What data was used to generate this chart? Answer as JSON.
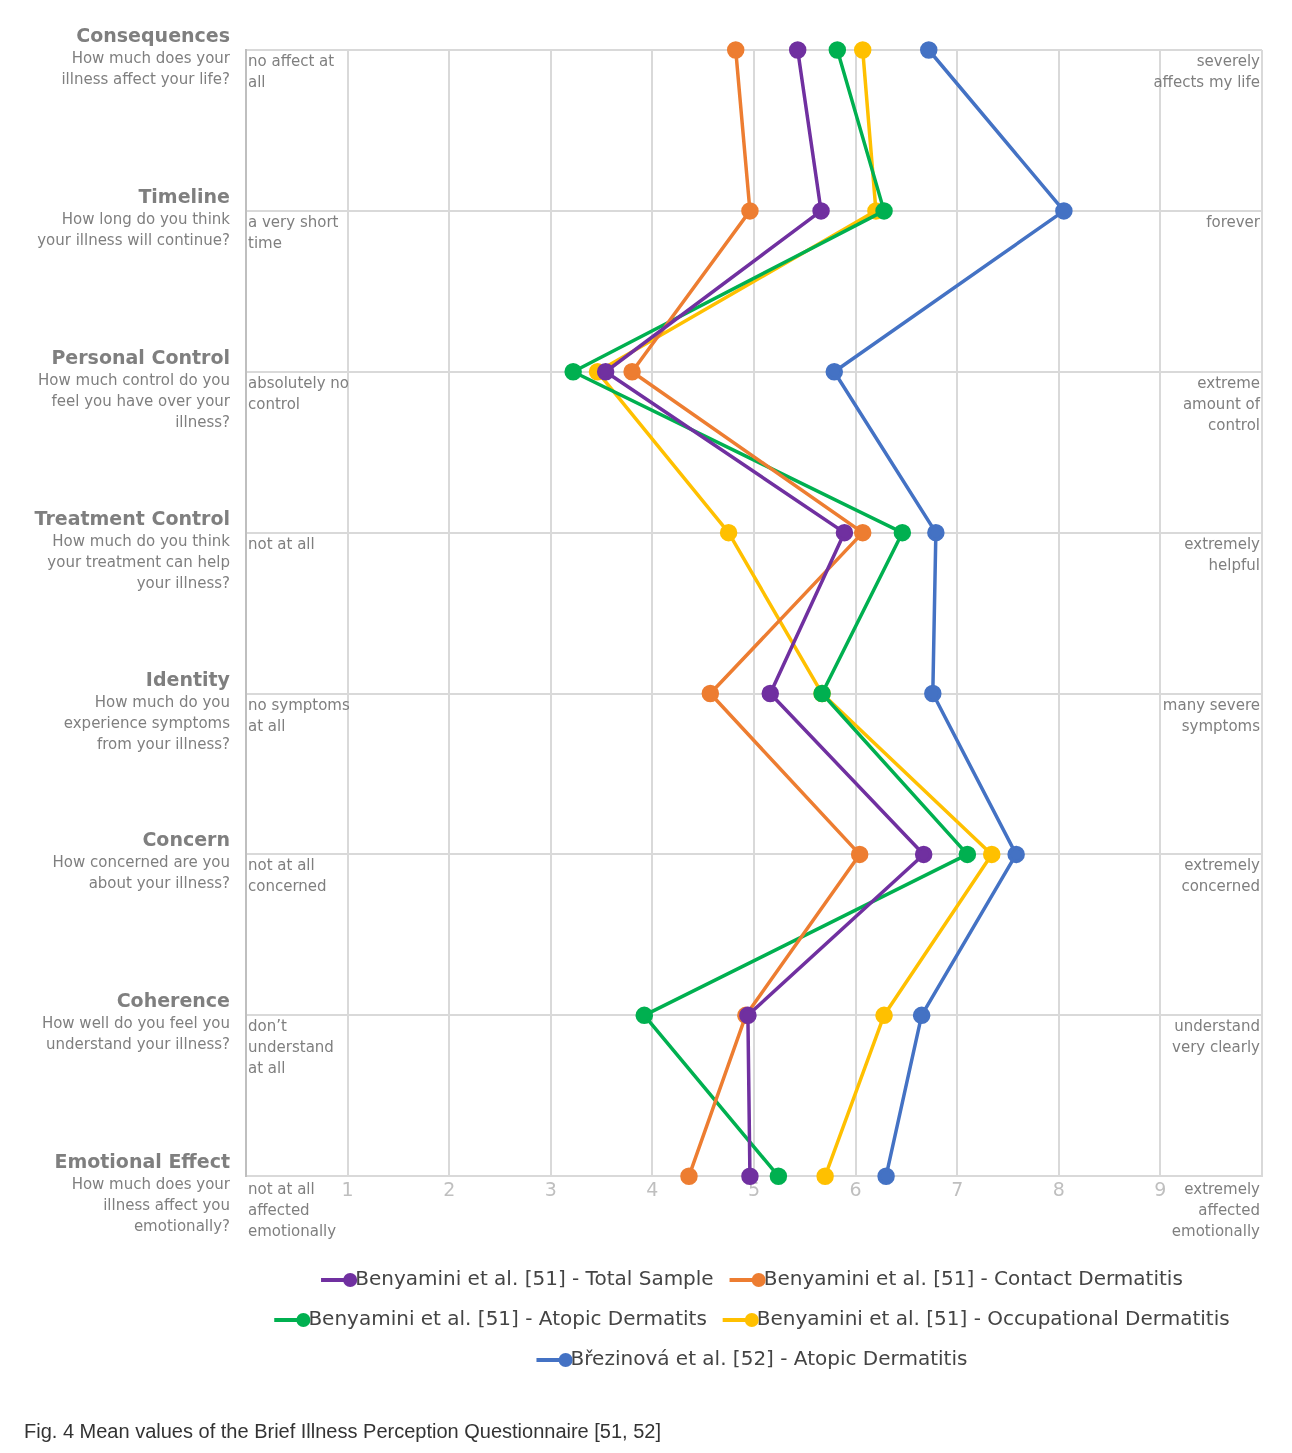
{
  "chart_data": {
    "type": "line",
    "orientation": "horizontal",
    "title": "Fig. 4 Mean values of the Brief Illness Perception Questionnaire [51, 52]",
    "categories": [
      "Consequences",
      "Timeline",
      "Personal Control",
      "Treatment Control",
      "Identity",
      "Concern",
      "Coherence",
      "Emotional Effect"
    ],
    "xlim": [
      0,
      10
    ],
    "xticks": [
      {
        "value": 0,
        "label": null
      },
      1,
      2,
      3,
      4,
      5,
      6,
      7,
      8,
      9,
      {
        "value": 10,
        "label": null
      }
    ],
    "grid": true,
    "legend": "bottom",
    "marker": "circle",
    "series": [
      {
        "name": "Benyamini et al. [51] - Total Sample",
        "color": "#7030a0",
        "values": [
          5.43,
          5.66,
          3.54,
          5.89,
          5.16,
          6.67,
          4.94,
          4.96
        ]
      },
      {
        "name": "Benyamini et al. [51] - Contact Dermatitis",
        "color": "#ed7d31",
        "values": [
          4.82,
          4.96,
          3.8,
          6.07,
          4.57,
          6.04,
          4.92,
          4.36
        ]
      },
      {
        "name": "Benyamini et al. [51] - Atopic Dermatits",
        "color": "#00b050",
        "values": [
          5.82,
          6.28,
          3.22,
          6.46,
          5.67,
          7.1,
          3.92,
          5.24
        ]
      },
      {
        "name": "Benyamini et al. [51] - Occupational Dermatitis",
        "color": "#ffc000",
        "values": [
          6.07,
          6.2,
          3.46,
          4.75,
          5.67,
          7.34,
          6.28,
          5.7
        ]
      },
      {
        "name": "Březinová et al. [52] - Atopic Dermatitis",
        "color": "#4472c4",
        "values": [
          6.72,
          8.05,
          5.79,
          6.79,
          6.76,
          7.58,
          6.65,
          6.3
        ]
      }
    ],
    "annotations": [
      "How much does your illness affect your life?",
      "no affect at all",
      "severely affects my life",
      "How long do you think your illness will continue?",
      "a very short time",
      "forever",
      "How much control do you feel you have over your illness?",
      "absolutely no control",
      "extreme amount of control",
      "How much do you think your treatment can help your illness?",
      "not at all",
      "extremely helpful",
      "How much do you experience symptoms from your illness?",
      "no symptoms at all",
      "many severe symptoms",
      "How concerned are you about your illness?",
      "not at all concerned",
      "extremely concerned",
      "How well do you feel you understand your illness?",
      "don’t understand at all",
      "understand very clearly",
      "How much does your illness affect you emotionally?",
      "not at all affected emotionally",
      "extremely affected emotionally"
    ]
  }
}
